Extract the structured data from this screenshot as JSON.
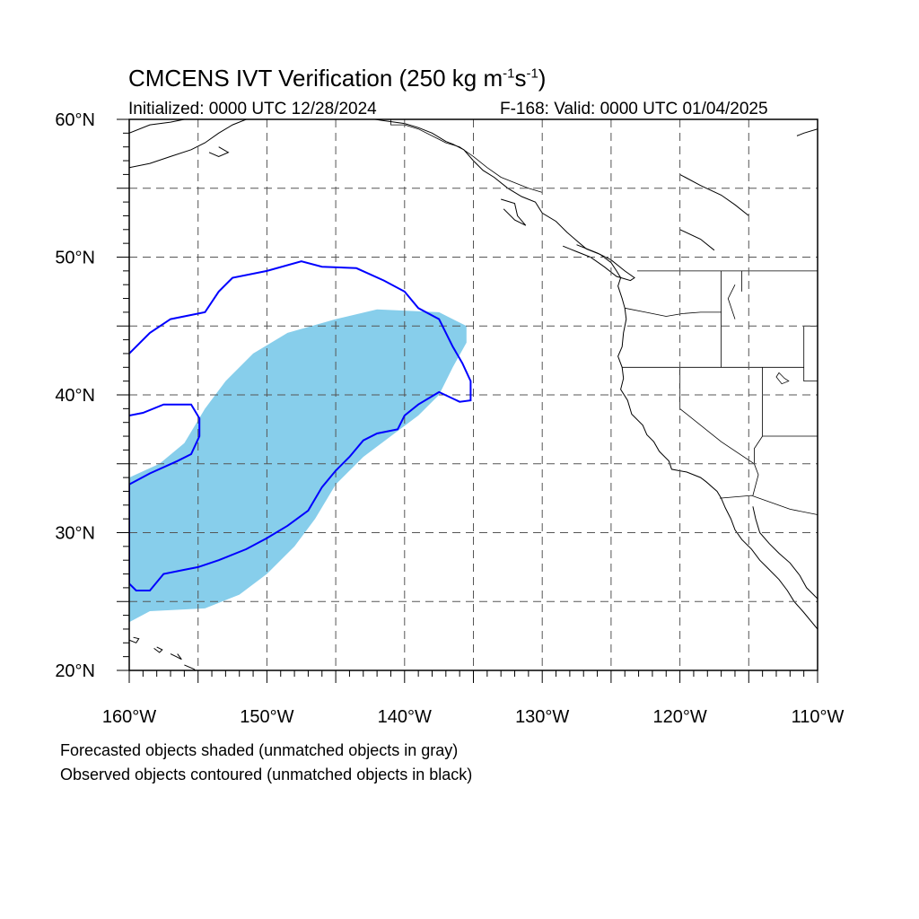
{
  "title": {
    "text": "CMCENS IVT Verification (250 kg m",
    "sup1": "-1",
    "mid": "s",
    "sup2": "-1",
    "end": ")"
  },
  "subtitle": {
    "initialized": "Initialized: 0000 UTC 12/28/2024",
    "valid": "F-168: Valid: 0000 UTC 01/04/2025"
  },
  "axes": {
    "lon_min": -160,
    "lon_max": -110,
    "lat_min": 20,
    "lat_max": 60,
    "lon_ticks": [
      {
        "value": -160,
        "label": "160°W"
      },
      {
        "value": -150,
        "label": "150°W"
      },
      {
        "value": -140,
        "label": "140°W"
      },
      {
        "value": -130,
        "label": "130°W"
      },
      {
        "value": -120,
        "label": "120°W"
      },
      {
        "value": -110,
        "label": "110°W"
      }
    ],
    "lat_ticks": [
      {
        "value": 20,
        "label": "20°N"
      },
      {
        "value": 30,
        "label": "30°N"
      },
      {
        "value": 40,
        "label": "40°N"
      },
      {
        "value": 50,
        "label": "50°N"
      },
      {
        "value": 60,
        "label": "60°N"
      }
    ],
    "grid_interval_deg": 5,
    "grid_style": "dashed"
  },
  "colors": {
    "forecast_fill": "#87CEEB",
    "observed_contour": "#0000FF",
    "coast": "#000000"
  },
  "legend": {
    "line1": "Forecasted objects shaded (unmatched objects in gray)",
    "line2": "Observed objects contoured (unmatched objects in black)"
  },
  "objects": {
    "forecast_shaded": [
      [
        [
          -160,
          23.5
        ],
        [
          -158.5,
          24.3
        ],
        [
          -154.5,
          24.5
        ],
        [
          -152,
          25.5
        ],
        [
          -150,
          27
        ],
        [
          -148,
          29
        ],
        [
          -146.5,
          31
        ],
        [
          -145,
          33.5
        ],
        [
          -143,
          35.5
        ],
        [
          -141,
          37
        ],
        [
          -139,
          38.5
        ],
        [
          -137.5,
          40
        ],
        [
          -136.5,
          42
        ],
        [
          -135.5,
          43.8
        ],
        [
          -135.5,
          45
        ],
        [
          -137.5,
          46
        ],
        [
          -142,
          46.2
        ],
        [
          -145,
          45.5
        ],
        [
          -148.5,
          44.5
        ],
        [
          -151,
          43
        ],
        [
          -153,
          41
        ],
        [
          -154.5,
          39
        ],
        [
          -156,
          36.5
        ],
        [
          -157.8,
          35
        ],
        [
          -160,
          34
        ]
      ]
    ],
    "observed_contour": [
      [
        [
          -160,
          43
        ],
        [
          -158.5,
          44.5
        ],
        [
          -157,
          45.5
        ],
        [
          -154.5,
          46
        ],
        [
          -153.5,
          47.5
        ],
        [
          -152.5,
          48.5
        ],
        [
          -150,
          49
        ],
        [
          -147.5,
          49.7
        ],
        [
          -146,
          49.3
        ],
        [
          -143.5,
          49.2
        ],
        [
          -141.5,
          48.3
        ],
        [
          -140,
          47.5
        ],
        [
          -139,
          46.3
        ],
        [
          -137.5,
          45.5
        ],
        [
          -136.5,
          43.5
        ],
        [
          -135.8,
          42.3
        ],
        [
          -135.2,
          41
        ],
        [
          -135.2,
          39.6
        ],
        [
          -136,
          39.5
        ],
        [
          -137.5,
          40.2
        ],
        [
          -139,
          39.3
        ],
        [
          -140,
          38.5
        ],
        [
          -140.5,
          37.5
        ],
        [
          -142,
          37.2
        ],
        [
          -143,
          36.7
        ],
        [
          -144,
          35.5
        ],
        [
          -145,
          34.5
        ],
        [
          -146,
          33.3
        ],
        [
          -147,
          31.6
        ],
        [
          -148.5,
          30.5
        ],
        [
          -150,
          29.6
        ],
        [
          -151.5,
          28.8
        ],
        [
          -153.5,
          28
        ],
        [
          -155,
          27.5
        ],
        [
          -156,
          27.3
        ],
        [
          -157.5,
          27
        ],
        [
          -158.5,
          25.8
        ],
        [
          -159.5,
          25.8
        ],
        [
          -160,
          26.3
        ],
        [
          -160,
          33.5
        ],
        [
          -158.5,
          34.3
        ],
        [
          -156.5,
          35.2
        ],
        [
          -155.5,
          35.7
        ],
        [
          -154.9,
          37
        ],
        [
          -154.9,
          38.3
        ],
        [
          -155.5,
          39.3
        ],
        [
          -157.5,
          39.3
        ],
        [
          -159,
          38.7
        ],
        [
          -160,
          38.5
        ]
      ]
    ]
  },
  "geography": {
    "coastlines": [
      [
        [
          -160,
          59.0
        ],
        [
          -158.5,
          59.6
        ],
        [
          -157,
          59.8
        ],
        [
          -156,
          60.0
        ]
      ],
      [
        [
          -160,
          56.5
        ],
        [
          -158.5,
          56.8
        ],
        [
          -157,
          57.3
        ],
        [
          -155.5,
          57.8
        ],
        [
          -154.5,
          58.3
        ],
        [
          -153.5,
          59.0
        ],
        [
          -152.5,
          59.6
        ],
        [
          -151.5,
          60.0
        ]
      ],
      [
        [
          -154.2,
          57.6
        ],
        [
          -153.5,
          57.3
        ],
        [
          -152.8,
          57.6
        ],
        [
          -153.5,
          58.0
        ]
      ],
      [
        [
          -145,
          60
        ],
        [
          -143.5,
          60.2
        ],
        [
          -141.5,
          59.9
        ],
        [
          -140,
          59.7
        ],
        [
          -139,
          59.4
        ],
        [
          -138,
          59.0
        ],
        [
          -137,
          58.4
        ],
        [
          -136.5,
          58.2
        ],
        [
          -135.7,
          57.8
        ],
        [
          -135,
          57.0
        ],
        [
          -134.3,
          56.3
        ],
        [
          -133.5,
          55.8
        ],
        [
          -132.5,
          55.0
        ],
        [
          -131.5,
          54.4
        ],
        [
          -130.5,
          54.0
        ],
        [
          -130,
          53.2
        ],
        [
          -129,
          52.6
        ],
        [
          -128.2,
          51.8
        ],
        [
          -127.5,
          51.2
        ],
        [
          -126.8,
          50.6
        ],
        [
          -125.8,
          50.2
        ],
        [
          -125,
          49.6
        ],
        [
          -124.6,
          49.0
        ],
        [
          -124.3,
          48.5
        ],
        [
          -124.5,
          47.9
        ],
        [
          -124.2,
          47.0
        ],
        [
          -124.0,
          46.3
        ],
        [
          -123.9,
          45.5
        ],
        [
          -124.1,
          44.5
        ],
        [
          -124.2,
          43.5
        ],
        [
          -124.5,
          42.8
        ],
        [
          -124.2,
          42.0
        ],
        [
          -124.1,
          41.2
        ],
        [
          -124.3,
          40.4
        ],
        [
          -123.8,
          39.6
        ],
        [
          -123.5,
          38.6
        ],
        [
          -122.7,
          37.8
        ],
        [
          -122.4,
          37.1
        ],
        [
          -121.9,
          36.6
        ],
        [
          -121.5,
          35.9
        ],
        [
          -120.8,
          35.2
        ],
        [
          -120.6,
          34.6
        ],
        [
          -119.5,
          34.4
        ],
        [
          -118.5,
          34.0
        ],
        [
          -118.1,
          33.7
        ],
        [
          -117.3,
          33.0
        ],
        [
          -117.0,
          32.5
        ],
        [
          -116.7,
          31.8
        ],
        [
          -116.3,
          31.0
        ],
        [
          -116.0,
          30.2
        ],
        [
          -115.5,
          29.5
        ],
        [
          -114.8,
          28.8
        ],
        [
          -114.2,
          28.0
        ],
        [
          -113.5,
          27.3
        ],
        [
          -112.8,
          26.6
        ],
        [
          -112.2,
          25.8
        ],
        [
          -111.7,
          25.0
        ],
        [
          -111.0,
          24.2
        ],
        [
          -110,
          23.0
        ]
      ],
      [
        [
          -114.7,
          31.9
        ],
        [
          -114.5,
          31.0
        ],
        [
          -114.2,
          30.0
        ],
        [
          -113.5,
          29.2
        ],
        [
          -112.8,
          28.5
        ],
        [
          -112.0,
          27.8
        ],
        [
          -111.3,
          26.9
        ],
        [
          -110.8,
          26.0
        ],
        [
          -110,
          25.2
        ]
      ],
      [
        [
          -128.5,
          50.8
        ],
        [
          -127.5,
          50.4
        ],
        [
          -126.5,
          50.0
        ],
        [
          -125.5,
          49.3
        ],
        [
          -124.6,
          48.6
        ],
        [
          -123.6,
          48.3
        ],
        [
          -123.3,
          48.5
        ],
        [
          -124,
          49.0
        ],
        [
          -125,
          49.8
        ],
        [
          -126,
          50.3
        ],
        [
          -127.5,
          50.9
        ]
      ],
      [
        [
          -133,
          54.2
        ],
        [
          -132,
          53.9
        ],
        [
          -131.8,
          53.0
        ],
        [
          -131.2,
          52.3
        ],
        [
          -132,
          52.7
        ],
        [
          -132.8,
          53.5
        ]
      ],
      [
        [
          -160,
          22.2
        ],
        [
          -159.5,
          22.0
        ],
        [
          -159.3,
          22.3
        ],
        [
          -159.7,
          22.4
        ]
      ],
      [
        [
          -158.2,
          21.6
        ],
        [
          -157.8,
          21.3
        ],
        [
          -157.6,
          21.5
        ],
        [
          -158.0,
          21.7
        ]
      ],
      [
        [
          -157,
          21.2
        ],
        [
          -156.6,
          21.0
        ],
        [
          -156.2,
          20.8
        ],
        [
          -156.5,
          21.2
        ]
      ],
      [
        [
          -156,
          20.4
        ],
        [
          -155.3,
          20.1
        ],
        [
          -154.8,
          19.6
        ],
        [
          -155.5,
          19.4
        ],
        [
          -156,
          19.8
        ]
      ],
      [
        [
          -110,
          59.3
        ],
        [
          -111,
          59.0
        ],
        [
          -111.5,
          58.8
        ]
      ],
      [
        [
          -120,
          56.0
        ],
        [
          -118.5,
          55.2
        ],
        [
          -117,
          54.5
        ],
        [
          -116,
          53.8
        ],
        [
          -115,
          53.0
        ]
      ],
      [
        [
          -120,
          52.0
        ],
        [
          -118.5,
          51.3
        ],
        [
          -117.5,
          50.5
        ]
      ]
    ],
    "borders": [
      [
        [
          -141,
          60
        ],
        [
          -141,
          59.6
        ],
        [
          -140,
          59.6
        ],
        [
          -139,
          59.3
        ],
        [
          -138,
          58.8
        ],
        [
          -137,
          58.3
        ],
        [
          -136,
          58.0
        ],
        [
          -135,
          57.3
        ],
        [
          -134,
          56.5
        ],
        [
          -133,
          55.8
        ],
        [
          -131,
          55.0
        ],
        [
          -130,
          54.7
        ]
      ],
      [
        [
          -123.1,
          49.0
        ],
        [
          -110,
          49.0
        ]
      ],
      [
        [
          -124.0,
          46.3
        ],
        [
          -122.5,
          46.0
        ],
        [
          -121,
          45.7
        ],
        [
          -119.8,
          45.9
        ],
        [
          -118.5,
          46.0
        ],
        [
          -117,
          46.0
        ]
      ],
      [
        [
          -117.0,
          49.0
        ],
        [
          -117.0,
          42.0
        ]
      ],
      [
        [
          -124.2,
          42.0
        ],
        [
          -111.0,
          42.0
        ]
      ],
      [
        [
          -120.0,
          42.0
        ],
        [
          -120.0,
          39.0
        ],
        [
          -117,
          36.6
        ],
        [
          -114.6,
          35.0
        ]
      ],
      [
        [
          -114.0,
          42.0
        ],
        [
          -114.0,
          37.0
        ],
        [
          -114.6,
          36.1
        ],
        [
          -114.6,
          35.0
        ],
        [
          -114.3,
          34.2
        ],
        [
          -114.7,
          32.7
        ]
      ],
      [
        [
          -114.0,
          37.0
        ],
        [
          -110,
          37.0
        ]
      ],
      [
        [
          -117.1,
          32.5
        ],
        [
          -114.8,
          32.7
        ],
        [
          -112,
          31.7
        ],
        [
          -110,
          31.3
        ]
      ],
      [
        [
          -115.5,
          47.5
        ],
        [
          -115.5,
          49.0
        ]
      ],
      [
        [
          -116.0,
          48.0
        ],
        [
          -116.5,
          47.0
        ],
        [
          -116.0,
          45.5
        ]
      ],
      [
        [
          -111.0,
          45.0
        ],
        [
          -110,
          45.0
        ]
      ],
      [
        [
          -111.0,
          45.0
        ],
        [
          -111.0,
          41.0
        ],
        [
          -110,
          41.0
        ]
      ]
    ],
    "lakes": [
      [
        [
          -112.8,
          41.6
        ],
        [
          -112.4,
          41.2
        ],
        [
          -112.1,
          41.0
        ],
        [
          -112.6,
          40.8
        ],
        [
          -113,
          41.3
        ]
      ]
    ]
  }
}
